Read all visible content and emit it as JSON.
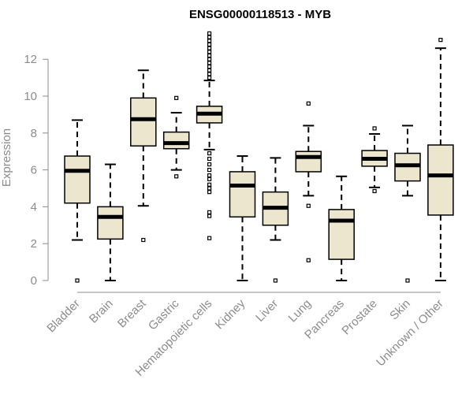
{
  "chart_data": {
    "type": "boxplot",
    "title": "ENSG00000118513 - MYB",
    "xlabel": "",
    "ylabel": "Expression",
    "ylim": [
      0,
      13.5
    ],
    "yticks": [
      0,
      2,
      4,
      6,
      8,
      10,
      12
    ],
    "categories": [
      "Bladder",
      "Brain",
      "Breast",
      "Gastric",
      "Hematopoietic cells",
      "Kidney",
      "Liver",
      "Lung",
      "Pancreas",
      "Prostate",
      "Skin",
      "Unknown / Other"
    ],
    "boxes": [
      {
        "category": "Bladder",
        "whisker_low": 2.2,
        "q1": 4.2,
        "median": 5.95,
        "q3": 6.75,
        "whisker_high": 8.7,
        "outliers": [
          0.0
        ]
      },
      {
        "category": "Brain",
        "whisker_low": 0.0,
        "q1": 2.25,
        "median": 3.45,
        "q3": 4.0,
        "whisker_high": 6.3,
        "outliers": []
      },
      {
        "category": "Breast",
        "whisker_low": 4.05,
        "q1": 7.3,
        "median": 8.75,
        "q3": 9.9,
        "whisker_high": 11.4,
        "outliers": [
          2.2
        ]
      },
      {
        "category": "Gastric",
        "whisker_low": 6.0,
        "q1": 7.15,
        "median": 7.45,
        "q3": 8.05,
        "whisker_high": 9.1,
        "outliers": [
          5.65,
          9.9
        ]
      },
      {
        "category": "Hematopoietic cells",
        "whisker_low": 7.1,
        "q1": 8.55,
        "median": 9.05,
        "q3": 9.45,
        "whisker_high": 10.85,
        "outliers": [
          2.3,
          3.5,
          3.7,
          4.8,
          5.0,
          5.2,
          5.5,
          5.7,
          6.0,
          6.3,
          6.6,
          6.9,
          11.0,
          11.2,
          11.4,
          11.6,
          11.8,
          12.0,
          12.2,
          12.4,
          12.6,
          12.8,
          13.0,
          13.2,
          13.4
        ]
      },
      {
        "category": "Kidney",
        "whisker_low": 0.0,
        "q1": 3.45,
        "median": 5.15,
        "q3": 5.9,
        "whisker_high": 6.75,
        "outliers": []
      },
      {
        "category": "Liver",
        "whisker_low": 2.2,
        "q1": 3.0,
        "median": 3.95,
        "q3": 4.8,
        "whisker_high": 6.65,
        "outliers": [
          0.0
        ]
      },
      {
        "category": "Lung",
        "whisker_low": 4.6,
        "q1": 5.9,
        "median": 6.7,
        "q3": 7.0,
        "whisker_high": 8.4,
        "outliers": [
          1.1,
          4.05,
          9.6
        ]
      },
      {
        "category": "Pancreas",
        "whisker_low": 0.0,
        "q1": 1.15,
        "median": 3.25,
        "q3": 3.85,
        "whisker_high": 5.65,
        "outliers": []
      },
      {
        "category": "Prostate",
        "whisker_low": 5.05,
        "q1": 6.2,
        "median": 6.6,
        "q3": 7.05,
        "whisker_high": 7.95,
        "outliers": [
          4.85,
          8.25
        ]
      },
      {
        "category": "Skin",
        "whisker_low": 4.6,
        "q1": 5.4,
        "median": 6.25,
        "q3": 6.9,
        "whisker_high": 8.4,
        "outliers": [
          0.0
        ]
      },
      {
        "category": "Unknown / Other",
        "whisker_low": 0.0,
        "q1": 3.55,
        "median": 5.7,
        "q3": 7.35,
        "whisker_high": 12.6,
        "outliers": [
          13.05
        ]
      }
    ],
    "colors": {
      "box_fill": "#ede6cf",
      "box_stroke": "#000000",
      "axis": "#8c8c8c",
      "title": "#000000"
    }
  }
}
